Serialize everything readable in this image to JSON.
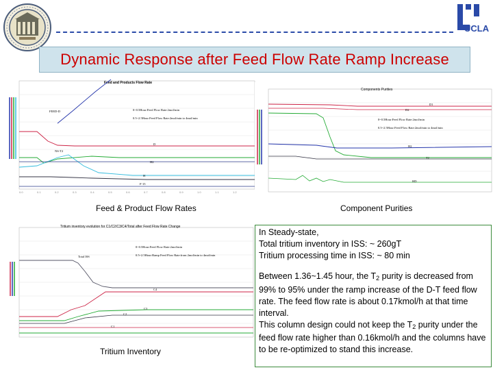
{
  "slide": {
    "title": "Dynamic Response after Feed Flow Rate Ramp Increase"
  },
  "logos": {
    "left": "university-seal-logo",
    "right": "ucla-logo",
    "right_text": "UCLA"
  },
  "charts": [
    {
      "id": "c1",
      "caption": "Feed & Product Flow Rates",
      "heading": "Feed and Products Flow Rate",
      "legend_lines": [
        "0~0.5Hour:Feed Flow Rate:2mol/min",
        "0.5~2.5Hour:Feed Flow Rate:2mol/min to 4mol/min"
      ],
      "series_labels": [
        "FEED-D",
        "D",
        "NS-T2",
        "H2",
        "H",
        "F-15"
      ],
      "colors": {
        "feed": "#2233aa",
        "red": "#cc2244",
        "green": "#22aa33",
        "cyan": "#33bbdd",
        "dark": "#333344",
        "navy": "#2b3a8a"
      }
    },
    {
      "id": "c2",
      "caption": "Component Purities",
      "heading": "Components Purities",
      "legend_lines": [
        "0~0.5Hour:Feed Flow Rate:2mol/min",
        "0.5~2.5Hour:Feed Flow Rate:2mol/min to 4mol/min"
      ],
      "series_labels": [
        "D1",
        "D2",
        "H2",
        "T2",
        "HD"
      ],
      "colors": {
        "red": "#cc2244",
        "green": "#22aa33",
        "blue": "#2233aa",
        "dark": "#333344"
      }
    },
    {
      "id": "c3",
      "caption": "Tritium Inventory",
      "heading": "Tritium inventory evolution for C1/C2/C3/C4/Total after Feed Flow Rate Change",
      "legend_lines": [
        "0~0.5Hour:Feed Flow Rate:2mol/min",
        "0.5~2.5Hour:Ramp Feed Flow Rate:from 2mol/min to 4mol/min"
      ],
      "series_labels": [
        "Total ISS",
        "C4",
        "C3",
        "C1",
        "C2"
      ],
      "colors": {
        "total": "#555566",
        "red": "#cc2244",
        "green": "#22aa33",
        "dark": "#333344"
      }
    }
  ],
  "note": {
    "steady_state": "In Steady-state,",
    "inventory": "Total tritium inventory in ISS: ~ 260gT",
    "processing_time": "Tritium processing time in ISS: ~ 80 min",
    "para1_a": "Between 1.36~1.45 hour, the T",
    "para1_sub": "2",
    "para1_b": " purity is decreased from 99% to 95% under the ramp increase of the D-T feed flow rate. The feed flow rate is about 0.17kmol/h at that time interval.",
    "para2_a": "This column design could not keep the T",
    "para2_sub": "2",
    "para2_b": " purity under the feed flow rate higher than 0.16kmol/h and the columns have to be re-optimized to stand this increase."
  }
}
